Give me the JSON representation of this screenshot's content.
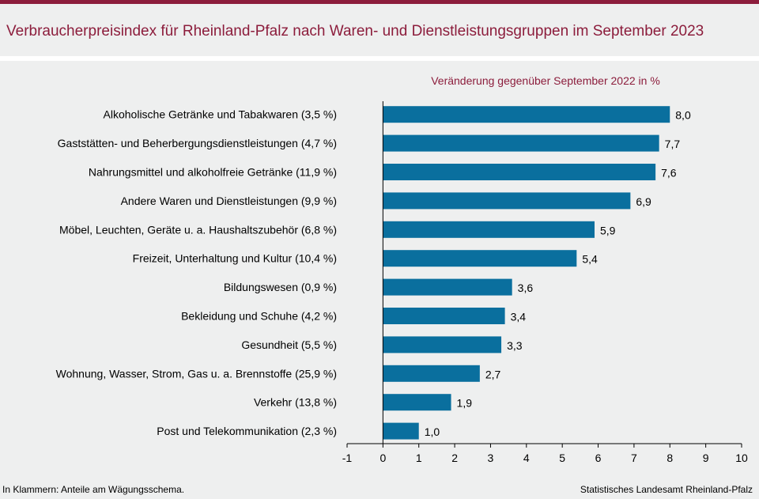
{
  "title": "Verbraucherpreisindex für Rheinland-Pfalz nach Waren- und Dienstleistungsgruppen im September 2023",
  "footnote": "In Klammern: Anteile am Wägungsschema.",
  "source": "Statistisches Landesamt Rheinland-Pfalz",
  "colors": {
    "accent": "#8c1d3c",
    "bar": "#0a6f9e",
    "background": "#eeefef"
  },
  "chart_data": {
    "type": "bar",
    "orientation": "horizontal",
    "subtitle": "Veränderung  gegenüber  September 2022 in %",
    "categories": [
      "Alkoholische Getränke und Tabakwaren (3,5 %)",
      "Gaststätten- und Beherbergungsdienstleistungen (4,7 %)",
      "Nahrungsmittel und alkoholfreie Getränke (11,9 %)",
      "Andere Waren und Dienstleistungen (9,9 %)",
      "Möbel, Leuchten, Geräte u. a. Haushaltszubehör (6,8 %)",
      "Freizeit, Unterhaltung und Kultur (10,4 %)",
      "Bildungswesen (0,9 %)",
      "Bekleidung und Schuhe (4,2 %)",
      "Gesundheit (5,5 %)",
      "Wohnung, Wasser, Strom, Gas u. a. Brennstoffe (25,9 %)",
      "Verkehr (13,8 %)",
      "Post und Telekommunikation (2,3 %)"
    ],
    "values": [
      8.0,
      7.7,
      7.6,
      6.9,
      5.9,
      5.4,
      3.6,
      3.4,
      3.3,
      2.7,
      1.9,
      1.0
    ],
    "value_labels": [
      "8,0",
      "7,7",
      "7,6",
      "6,9",
      "5,9",
      "5,4",
      "3,6",
      "3,4",
      "3,3",
      "2,7",
      "1,9",
      "1,0"
    ],
    "xlim": [
      -1,
      10
    ],
    "xticks": [
      -1,
      0,
      1,
      2,
      3,
      4,
      5,
      6,
      7,
      8,
      9,
      10
    ],
    "xtick_labels": [
      "-1",
      "0",
      "1",
      "2",
      "3",
      "4",
      "5",
      "6",
      "7",
      "8",
      "9",
      "10"
    ],
    "grid": false,
    "legend": "none"
  }
}
